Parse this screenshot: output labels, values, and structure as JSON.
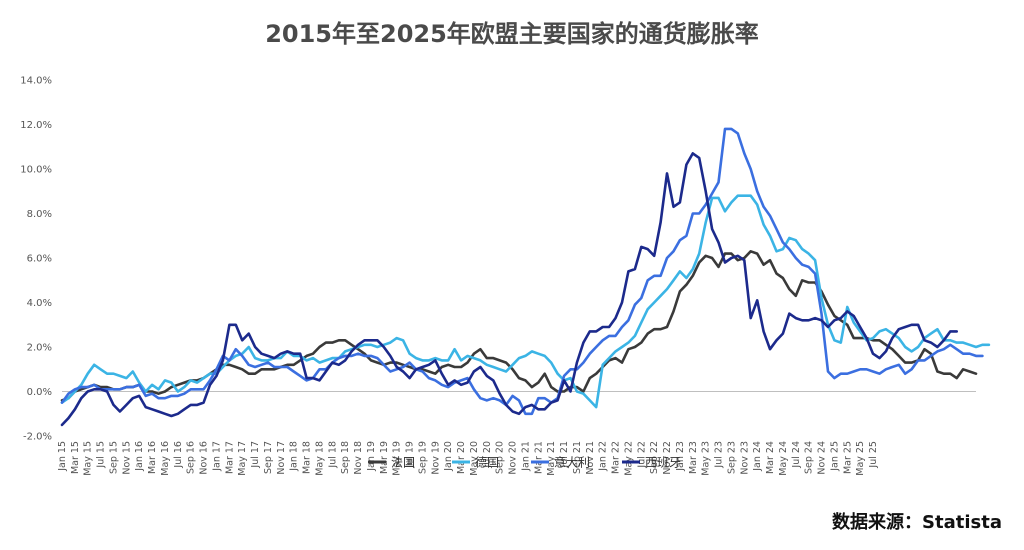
{
  "chart_data": {
    "type": "line",
    "title": "2015年至2025年欧盟主要国家的通货膨胀率",
    "source": "数据来源：Statista",
    "ylim": [
      -2,
      14
    ],
    "yticks": [
      "-2.0%",
      "0.0%",
      "2.0%",
      "4.0%",
      "6.0%",
      "8.0%",
      "10.0%",
      "12.0%",
      "14.0%"
    ],
    "ytick_values": [
      -2,
      0,
      2,
      4,
      6,
      8,
      10,
      12,
      14
    ],
    "grid": false,
    "legend_position": "bottom",
    "start": "Jan 15",
    "x_tick_labels": [
      "Jan 15",
      "Mar 15",
      "May 15",
      "Jul 15",
      "Sep 15",
      "Nov 15",
      "Jan 16",
      "Mar 16",
      "May 16",
      "Jul 16",
      "Sep 16",
      "Nov 16",
      "Jan 17",
      "Mar 17",
      "May 17",
      "Jul 17",
      "Sep 17",
      "Nov 17",
      "Jan 18",
      "Mar 18",
      "May 18",
      "Jul 18",
      "Sep 18",
      "Nov 18",
      "Jan 19",
      "Mar 19",
      "May 19",
      "Jul 19",
      "Sep 19",
      "Nov 19",
      "Jan 20",
      "Mar 20",
      "May 20",
      "Jul 20",
      "Sep 20",
      "Nov 20",
      "Jan 21",
      "Mar 21",
      "May 21",
      "Jul 21",
      "Sep 21",
      "Nov 21",
      "Jan 22",
      "Mar 22",
      "May 22",
      "Jul 22",
      "Sep 22",
      "Nov 22",
      "Jan 23",
      "Mar 23",
      "May 23",
      "Jul 23",
      "Sep 23",
      "Nov 23",
      "Jan 24",
      "Mar 24",
      "May 24",
      "Jul 24",
      "Sep 24",
      "Nov 24",
      "Jan 25",
      "Mar 25",
      "May 25",
      "Jul 25"
    ],
    "series": [
      {
        "name": "法国",
        "color": "#3a3a3a",
        "values": [
          -0.4,
          -0.3,
          0.0,
          0.1,
          0.2,
          0.3,
          0.2,
          0.2,
          0.1,
          0.1,
          0.2,
          0.2,
          0.3,
          0.0,
          0.0,
          -0.1,
          0.0,
          0.2,
          0.3,
          0.4,
          0.5,
          0.5,
          0.6,
          0.8,
          1.0,
          1.2,
          1.2,
          1.1,
          1.0,
          0.8,
          0.8,
          1.0,
          1.0,
          1.0,
          1.1,
          1.2,
          1.2,
          1.4,
          1.6,
          1.7,
          2.0,
          2.2,
          2.2,
          2.3,
          2.3,
          2.1,
          1.9,
          1.7,
          1.4,
          1.3,
          1.2,
          1.3,
          1.3,
          1.2,
          1.1,
          1.0,
          1.0,
          0.9,
          0.8,
          1.1,
          1.2,
          1.1,
          1.1,
          1.3,
          1.7,
          1.9,
          1.5,
          1.5,
          1.4,
          1.3,
          1.0,
          0.6,
          0.5,
          0.2,
          0.4,
          0.8,
          0.2,
          0.0,
          0.0,
          0.2,
          0.2,
          0.0,
          0.6,
          0.8,
          1.1,
          1.4,
          1.5,
          1.3,
          1.9,
          2.0,
          2.2,
          2.6,
          2.8,
          2.8,
          2.9,
          3.6,
          4.5,
          4.8,
          5.2,
          5.8,
          6.1,
          6.0,
          5.6,
          6.2,
          6.2,
          5.9,
          6.0,
          6.3,
          6.2,
          5.7,
          5.9,
          5.3,
          5.1,
          4.6,
          4.3,
          5.0,
          4.9,
          4.9,
          4.5,
          3.9,
          3.4,
          3.2,
          3.0,
          2.4,
          2.4,
          2.4,
          2.3,
          2.3,
          2.1,
          1.9,
          1.6,
          1.3,
          1.3,
          1.4,
          1.9,
          1.7,
          0.9,
          0.8,
          0.8,
          0.6,
          1.0,
          0.9,
          0.8
        ]
      },
      {
        "name": "德国",
        "color": "#3bb4e5",
        "values": [
          -0.5,
          -0.3,
          0.0,
          0.3,
          0.8,
          1.2,
          1.0,
          0.8,
          0.8,
          0.7,
          0.6,
          0.9,
          0.4,
          0.0,
          0.3,
          0.1,
          0.5,
          0.4,
          0.0,
          0.2,
          0.5,
          0.4,
          0.6,
          0.8,
          0.8,
          1.1,
          1.4,
          1.6,
          1.7,
          2.0,
          1.5,
          1.4,
          1.4,
          1.5,
          1.5,
          1.8,
          1.6,
          1.6,
          1.4,
          1.5,
          1.3,
          1.4,
          1.5,
          1.5,
          1.8,
          1.9,
          2.0,
          2.1,
          2.1,
          2.0,
          2.1,
          2.2,
          2.4,
          2.3,
          1.7,
          1.5,
          1.4,
          1.4,
          1.5,
          1.4,
          1.4,
          1.9,
          1.4,
          1.6,
          1.5,
          1.4,
          1.2,
          1.1,
          1.0,
          0.9,
          1.2,
          1.5,
          1.6,
          1.8,
          1.7,
          1.6,
          1.3,
          0.8,
          0.5,
          0.6,
          0.0,
          -0.1,
          -0.4,
          -0.7,
          1.2,
          1.5,
          1.8,
          2.0,
          2.2,
          2.5,
          3.1,
          3.7,
          4.0,
          4.3,
          4.6,
          5.0,
          5.4,
          5.1,
          5.5,
          6.2,
          7.6,
          8.7,
          8.7,
          8.1,
          8.5,
          8.8,
          8.8,
          8.8,
          8.4,
          7.5,
          7.0,
          6.3,
          6.4,
          6.9,
          6.8,
          6.4,
          6.2,
          5.9,
          4.2,
          3.0,
          2.3,
          2.2,
          3.8,
          3.1,
          2.7,
          2.3,
          2.4,
          2.7,
          2.8,
          2.6,
          2.4,
          2.0,
          1.8,
          2.0,
          2.4,
          2.6,
          2.8,
          2.3,
          2.3,
          2.2,
          2.2,
          2.1,
          2.0,
          2.1,
          2.1
        ]
      },
      {
        "name": "意大利",
        "color": "#3b6fe0",
        "values": [
          -0.5,
          -0.1,
          0.1,
          0.2,
          0.2,
          0.3,
          0.1,
          0.1,
          0.1,
          0.1,
          0.2,
          0.2,
          0.3,
          -0.2,
          -0.1,
          -0.3,
          -0.3,
          -0.2,
          -0.2,
          -0.1,
          0.1,
          0.1,
          0.1,
          0.5,
          1.0,
          1.6,
          1.4,
          1.9,
          1.6,
          1.2,
          1.1,
          1.2,
          1.3,
          1.1,
          1.1,
          1.1,
          0.9,
          0.7,
          0.5,
          0.6,
          1.0,
          1.0,
          1.3,
          1.5,
          1.6,
          1.6,
          1.7,
          1.6,
          1.6,
          1.5,
          1.2,
          0.9,
          1.0,
          1.1,
          1.3,
          1.0,
          0.9,
          0.6,
          0.5,
          0.3,
          0.2,
          0.4,
          0.5,
          0.6,
          0.1,
          -0.3,
          -0.4,
          -0.3,
          -0.4,
          -0.6,
          -0.2,
          -0.4,
          -1.0,
          -1.0,
          -0.3,
          -0.3,
          -0.5,
          -0.3,
          0.7,
          1.0,
          1.0,
          1.3,
          1.7,
          2.0,
          2.3,
          2.5,
          2.5,
          2.9,
          3.2,
          3.9,
          4.2,
          5.0,
          5.2,
          5.2,
          6.0,
          6.3,
          6.8,
          7.0,
          8.0,
          8.0,
          8.4,
          8.9,
          9.4,
          11.8,
          11.8,
          11.6,
          10.7,
          10.0,
          9.0,
          8.3,
          7.9,
          7.3,
          6.7,
          6.4,
          6.0,
          5.7,
          5.6,
          5.3,
          3.5,
          0.9,
          0.6,
          0.8,
          0.8,
          0.9,
          1.0,
          1.0,
          0.9,
          0.8,
          1.0,
          1.1,
          1.2,
          0.8,
          1.0,
          1.4,
          1.4,
          1.6,
          1.8,
          1.9,
          2.1,
          1.9,
          1.7,
          1.7,
          1.6,
          1.6
        ]
      },
      {
        "name": "西班牙",
        "color": "#1c2a8c",
        "values": [
          -1.5,
          -1.2,
          -0.8,
          -0.3,
          0.0,
          0.1,
          0.1,
          0.0,
          -0.6,
          -0.9,
          -0.6,
          -0.3,
          -0.2,
          -0.7,
          -0.8,
          -0.9,
          -1.0,
          -1.1,
          -1.0,
          -0.8,
          -0.6,
          -0.6,
          -0.5,
          0.3,
          0.7,
          1.4,
          3.0,
          3.0,
          2.3,
          2.6,
          2.0,
          1.7,
          1.6,
          1.5,
          1.7,
          1.8,
          1.7,
          1.7,
          0.6,
          0.6,
          0.5,
          0.9,
          1.3,
          1.2,
          1.4,
          1.8,
          2.1,
          2.3,
          2.3,
          2.3,
          2.0,
          1.6,
          1.1,
          0.9,
          0.6,
          1.0,
          1.1,
          1.2,
          1.4,
          0.8,
          0.3,
          0.5,
          0.3,
          0.4,
          0.9,
          1.1,
          0.7,
          0.5,
          -0.1,
          -0.6,
          -0.9,
          -1.0,
          -0.7,
          -0.6,
          -0.8,
          -0.8,
          -0.5,
          -0.4,
          0.5,
          0.0,
          1.3,
          2.2,
          2.7,
          2.7,
          2.9,
          2.9,
          3.3,
          4.0,
          5.4,
          5.5,
          6.5,
          6.4,
          6.1,
          7.6,
          9.8,
          8.3,
          8.5,
          10.2,
          10.7,
          10.5,
          9.0,
          7.3,
          6.7,
          5.8,
          6.0,
          6.1,
          5.9,
          3.3,
          4.1,
          2.7,
          1.9,
          2.3,
          2.6,
          3.5,
          3.3,
          3.2,
          3.2,
          3.3,
          3.2,
          2.9,
          3.2,
          3.3,
          3.6,
          3.4,
          2.9,
          2.4,
          1.7,
          1.5,
          1.8,
          2.4,
          2.8,
          2.9,
          3.0,
          3.0,
          2.3,
          2.2,
          2.0,
          2.3,
          2.7,
          2.7
        ]
      }
    ]
  }
}
